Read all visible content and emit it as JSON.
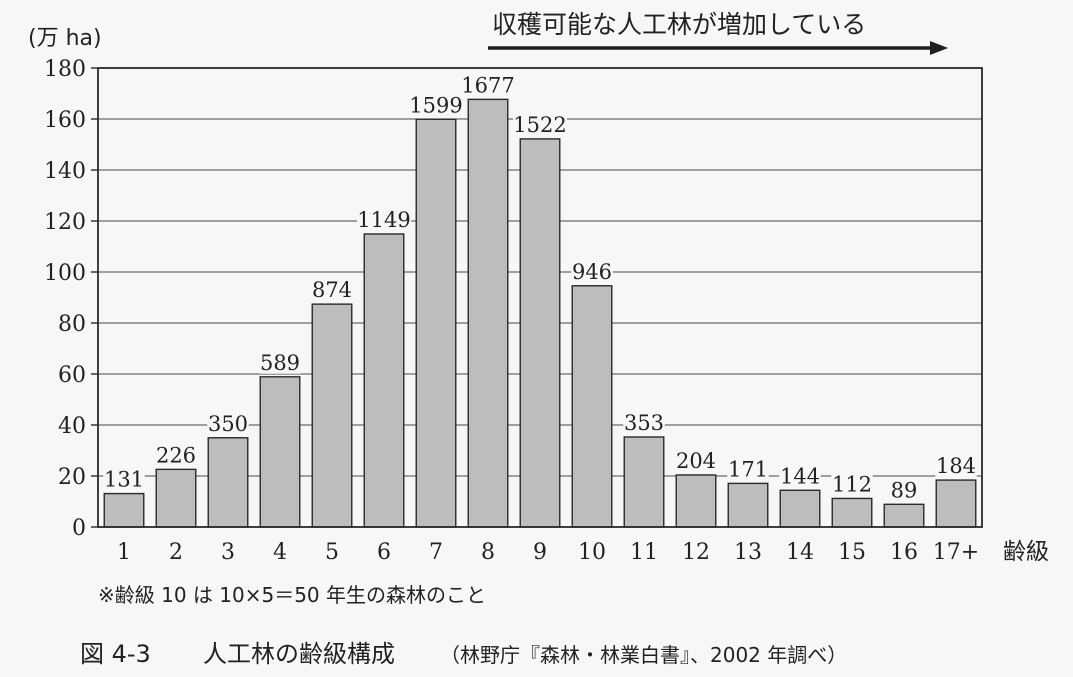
{
  "chart_data": {
    "type": "bar",
    "unit_label": "(万 ha)",
    "annotation": "収穫可能な人工林が増加している",
    "xlabel": "齢級",
    "categories": [
      "1",
      "2",
      "3",
      "4",
      "5",
      "6",
      "7",
      "8",
      "9",
      "10",
      "11",
      "12",
      "13",
      "14",
      "15",
      "16",
      "17+"
    ],
    "values": [
      13.1,
      22.6,
      35.0,
      58.9,
      87.4,
      114.9,
      159.9,
      167.7,
      152.2,
      94.6,
      35.3,
      20.4,
      17.1,
      14.4,
      11.2,
      8.9,
      18.4
    ],
    "data_labels": [
      "131",
      "226",
      "350",
      "589",
      "874",
      "1149",
      "1599",
      "1677",
      "1522",
      "946",
      "353",
      "204",
      "171",
      "144",
      "112",
      "89",
      "184"
    ],
    "ylim": [
      0,
      180
    ],
    "yticks": [
      0,
      20,
      40,
      60,
      80,
      100,
      120,
      140,
      160,
      180
    ],
    "grid": true,
    "bar_color": "#bdbdbd",
    "footnote": "※齢級 10 は 10×5＝50 年生の森林のこと",
    "caption": {
      "figure_number": "図 4-3",
      "title": "人工林の齢級構成",
      "source": "（林野庁『森林・林業白書』、2002 年調べ）"
    }
  }
}
